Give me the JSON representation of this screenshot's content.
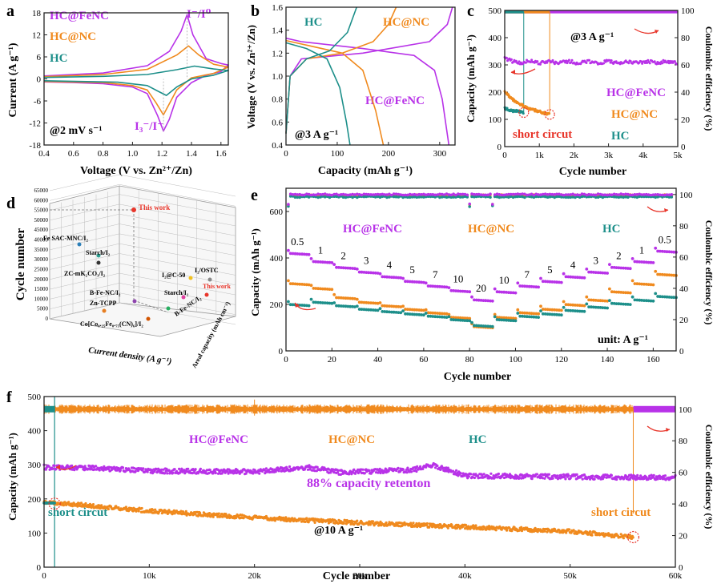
{
  "colors": {
    "fenc": "#b832e8",
    "nc": "#f08a1e",
    "hc": "#1d8f8a",
    "red": "#e8352a",
    "axis": "#222222",
    "grid3d": "#bdbdbd"
  },
  "chart_data": [
    {
      "panel": "a",
      "type": "line",
      "xlabel": "Voltage (V vs. Zn2+/Zn)",
      "ylabel": "Current (A g-1)",
      "xlim": [
        0.4,
        1.65
      ],
      "ylim": [
        -18,
        18
      ],
      "xticks": [
        "0.4",
        "0.6",
        "0.8",
        "1.0",
        "1.2",
        "1.4",
        "1.6"
      ],
      "yticks": [
        "-18",
        "-12",
        "-6",
        "0",
        "6",
        "12",
        "18"
      ],
      "legend": [
        "HC@FeNC",
        "HC@NC",
        "HC"
      ],
      "annotations": {
        "ox": "I-/I0",
        "red": "I3-/I-",
        "condition": "@2 mV s-1"
      },
      "series": [
        {
          "name": "HC@FeNC",
          "points": [
            [
              0.4,
              0.8
            ],
            [
              0.8,
              1.6
            ],
            [
              1.1,
              3.6
            ],
            [
              1.25,
              7.5
            ],
            [
              1.33,
              13
            ],
            [
              1.37,
              17.5
            ],
            [
              1.41,
              12
            ],
            [
              1.5,
              5.5
            ],
            [
              1.6,
              4.2
            ],
            [
              1.65,
              3.8
            ],
            [
              1.6,
              2.0
            ],
            [
              1.5,
              1.0
            ],
            [
              1.4,
              -1.0
            ],
            [
              1.3,
              -5
            ],
            [
              1.25,
              -11
            ],
            [
              1.21,
              -14.2
            ],
            [
              1.17,
              -10
            ],
            [
              1.1,
              -4
            ],
            [
              1.0,
              -2.2
            ],
            [
              0.8,
              -1.3
            ],
            [
              0.6,
              -1.0
            ],
            [
              0.4,
              -0.8
            ]
          ]
        },
        {
          "name": "HC@NC",
          "points": [
            [
              0.4,
              0.6
            ],
            [
              0.8,
              1.2
            ],
            [
              1.1,
              2.6
            ],
            [
              1.3,
              6.5
            ],
            [
              1.38,
              9
            ],
            [
              1.45,
              6.5
            ],
            [
              1.55,
              4
            ],
            [
              1.65,
              3.2
            ],
            [
              1.55,
              1.5
            ],
            [
              1.4,
              0.3
            ],
            [
              1.3,
              -3
            ],
            [
              1.24,
              -7.5
            ],
            [
              1.21,
              -9.8
            ],
            [
              1.16,
              -6.5
            ],
            [
              1.1,
              -3
            ],
            [
              1.0,
              -1.8
            ],
            [
              0.8,
              -1.0
            ],
            [
              0.4,
              -0.7
            ]
          ]
        },
        {
          "name": "HC",
          "points": [
            [
              0.4,
              0.4
            ],
            [
              0.8,
              0.7
            ],
            [
              1.1,
              1.2
            ],
            [
              1.3,
              2.5
            ],
            [
              1.42,
              3.5
            ],
            [
              1.55,
              2.7
            ],
            [
              1.65,
              2.3
            ],
            [
              1.55,
              1.0
            ],
            [
              1.4,
              0
            ],
            [
              1.3,
              -2.2
            ],
            [
              1.23,
              -4.5
            ],
            [
              1.18,
              -3.5
            ],
            [
              1.1,
              -1.8
            ],
            [
              0.9,
              -0.9
            ],
            [
              0.4,
              -0.5
            ]
          ]
        }
      ]
    },
    {
      "panel": "b",
      "type": "line",
      "xlabel": "Capacity (mAh g-1)",
      "ylabel": "Voltage (V vs. Zn2+/Zn)",
      "xlim": [
        0,
        330
      ],
      "ylim": [
        0.4,
        1.6
      ],
      "xticks": [
        "0",
        "100",
        "200",
        "300"
      ],
      "yticks": [
        "0.4",
        "0.6",
        "0.8",
        "1.0",
        "1.2",
        "1.4",
        "1.6"
      ],
      "legend": [
        "HC",
        "HC@NC",
        "HC@FeNC"
      ],
      "annotations": {
        "condition": "@3 A g-1"
      },
      "series": [
        {
          "name": "HC@FeNC charge",
          "points": [
            [
              0,
              0.5
            ],
            [
              8,
              1.0
            ],
            [
              30,
              1.15
            ],
            [
              150,
              1.2
            ],
            [
              280,
              1.3
            ],
            [
              315,
              1.45
            ],
            [
              325,
              1.6
            ]
          ]
        },
        {
          "name": "HC@FeNC discharge",
          "points": [
            [
              0,
              1.33
            ],
            [
              30,
              1.3
            ],
            [
              150,
              1.24
            ],
            [
              250,
              1.18
            ],
            [
              290,
              1.05
            ],
            [
              305,
              0.8
            ],
            [
              318,
              0.4
            ]
          ]
        },
        {
          "name": "HC@NC charge",
          "points": [
            [
              0,
              0.5
            ],
            [
              8,
              1.0
            ],
            [
              40,
              1.15
            ],
            [
              110,
              1.2
            ],
            [
              170,
              1.3
            ],
            [
              200,
              1.45
            ],
            [
              215,
              1.6
            ]
          ]
        },
        {
          "name": "HC@NC discharge",
          "points": [
            [
              0,
              1.31
            ],
            [
              40,
              1.27
            ],
            [
              110,
              1.2
            ],
            [
              150,
              1.05
            ],
            [
              175,
              0.7
            ],
            [
              190,
              0.4
            ]
          ]
        },
        {
          "name": "HC charge",
          "points": [
            [
              0,
              0.5
            ],
            [
              8,
              1.0
            ],
            [
              40,
              1.15
            ],
            [
              85,
              1.22
            ],
            [
              120,
              1.38
            ],
            [
              138,
              1.6
            ]
          ]
        },
        {
          "name": "HC discharge",
          "points": [
            [
              0,
              1.29
            ],
            [
              40,
              1.24
            ],
            [
              80,
              1.15
            ],
            [
              105,
              0.9
            ],
            [
              118,
              0.6
            ],
            [
              125,
              0.4
            ]
          ]
        }
      ]
    },
    {
      "panel": "c",
      "type": "scatter",
      "xlabel": "Cycle number",
      "ylabel": "Capacity (mAh g-1)",
      "y2label": "Coulombic efficiency (%)",
      "xlim": [
        0,
        5000
      ],
      "ylim": [
        0,
        500
      ],
      "y2lim": [
        0,
        100
      ],
      "xticks": [
        "0",
        "1k",
        "2k",
        "3k",
        "4k",
        "5k"
      ],
      "yticks": [
        "0",
        "100",
        "200",
        "300",
        "400",
        "500"
      ],
      "y2ticks": [
        "0",
        "20",
        "40",
        "60",
        "80",
        "100"
      ],
      "legend": [
        "HC@FeNC",
        "HC@NC",
        "HC"
      ],
      "annotations": {
        "condition": "@3 A g-1",
        "short": "short circut"
      },
      "series": [
        {
          "name": "HC@FeNC capacity",
          "summary": "~325 mAh g-1 initially, stable ~310 to 5000 cycles"
        },
        {
          "name": "HC@NC capacity",
          "points": [
            [
              0,
              200
            ],
            [
              300,
              165
            ],
            [
              700,
              140
            ],
            [
              1100,
              125
            ],
            [
              1300,
              118
            ]
          ]
        },
        {
          "name": "HC capacity",
          "points": [
            [
              0,
              140
            ],
            [
              200,
              132
            ],
            [
              450,
              128
            ],
            [
              550,
              125
            ]
          ]
        },
        {
          "name": "CE",
          "summary": "~99% for all samples"
        }
      ]
    },
    {
      "panel": "d",
      "type": "scatter",
      "xlabel": "Current density (A g-1)",
      "ylabel": "Cycle number",
      "zlabel": "Areal capacity (mAh cm-2)",
      "yticks": [
        "0",
        "5000",
        "10000",
        "15000",
        "20000",
        "25000",
        "30000",
        "35000",
        "40000",
        "45000",
        "50000",
        "55000",
        "60000",
        "65000"
      ],
      "labels": [
        "This work",
        "Fe SAC-MNC/I2",
        "Starch/I2",
        "ZC-mK2CO3/I2",
        "I2@C-50",
        "I2/OSTC",
        "This work",
        "Starch/I2",
        "B-Fe-NC/I2",
        "Zn-TCPP",
        "Co[Co0.25Fe0.75(CN)6]/I2",
        "B-Fe-NC/I2"
      ]
    },
    {
      "panel": "e",
      "type": "scatter",
      "xlabel": "Cycle number",
      "ylabel": "Capacity (mAh g-1)",
      "y2label": "Coulombic efficiency (%)",
      "xlim": [
        0,
        170
      ],
      "ylim": [
        0,
        700
      ],
      "y2lim": [
        0,
        100
      ],
      "xticks": [
        "0",
        "20",
        "40",
        "60",
        "80",
        "100",
        "120",
        "140",
        "160"
      ],
      "yticks": [
        "0",
        "200",
        "400",
        "600"
      ],
      "y2ticks": [
        "0",
        "20",
        "40",
        "60",
        "80",
        "100"
      ],
      "legend": [
        "HC@FeNC",
        "HC@NC",
        "HC"
      ],
      "rate_labels": [
        "0.5",
        "1",
        "2",
        "3",
        "4",
        "5",
        "7",
        "10",
        "20",
        "10",
        "7",
        "5",
        "4",
        "3",
        "2",
        "1",
        "0.5"
      ],
      "unit_label": "unit: A g-1",
      "series": [
        {
          "name": "HC@FeNC",
          "steps": [
            420,
            385,
            360,
            340,
            320,
            300,
            280,
            260,
            220,
            255,
            280,
            300,
            320,
            340,
            360,
            385,
            430
          ]
        },
        {
          "name": "HC@NC",
          "steps": [
            290,
            270,
            230,
            210,
            195,
            180,
            165,
            145,
            105,
            145,
            165,
            180,
            200,
            220,
            255,
            290,
            330
          ]
        },
        {
          "name": "HC",
          "steps": [
            200,
            210,
            195,
            180,
            170,
            160,
            150,
            135,
            110,
            135,
            150,
            160,
            175,
            190,
            205,
            220,
            235
          ]
        },
        {
          "name": "CE",
          "summary": "~98-99%"
        }
      ]
    },
    {
      "panel": "f",
      "type": "scatter",
      "xlabel": "Cycle number",
      "ylabel": "Capacity (mAh g-1)",
      "y2label": "Coulombic efficiency (%)",
      "xlim": [
        0,
        60000
      ],
      "ylim": [
        0,
        500
      ],
      "y2lim": [
        0,
        100
      ],
      "xticks": [
        "0",
        "10k",
        "20k",
        "30k",
        "40k",
        "50k",
        "60k"
      ],
      "yticks": [
        "0",
        "100",
        "200",
        "300",
        "400",
        "500"
      ],
      "y2ticks": [
        "0",
        "20",
        "40",
        "60",
        "80",
        "100"
      ],
      "legend": [
        "HC@FeNC",
        "HC@NC",
        "HC"
      ],
      "annotations": {
        "retention": "88% capacity retenton",
        "condition": "@10 A g-1",
        "short_left": "short circut",
        "short_right": "short circut"
      },
      "series": [
        {
          "name": "HC@FeNC",
          "points": [
            [
              0,
              293
            ],
            [
              5000,
              290
            ],
            [
              10000,
              282
            ],
            [
              20000,
              280
            ],
            [
              25000,
              293
            ],
            [
              28000,
              278
            ],
            [
              35000,
              285
            ],
            [
              37000,
              298
            ],
            [
              40000,
              268
            ],
            [
              50000,
              265
            ],
            [
              60000,
              262
            ]
          ]
        },
        {
          "name": "HC@NC",
          "points": [
            [
              0,
              192
            ],
            [
              10000,
              165
            ],
            [
              20000,
              145
            ],
            [
              30000,
              130
            ],
            [
              40000,
              118
            ],
            [
              50000,
              105
            ],
            [
              56000,
              88
            ]
          ]
        },
        {
          "name": "HC",
          "points": [
            [
              0,
              188
            ],
            [
              1000,
              185
            ]
          ]
        },
        {
          "name": "CE",
          "summary": "~100%"
        }
      ]
    }
  ],
  "text": {
    "a": {
      "letter": "a",
      "l1": "HC@FeNC",
      "l2": "HC@NC",
      "l3": "HC",
      "ox": "I⁻/I⁰",
      "red": "I₃⁻/I⁻",
      "cond": "@2 mV s⁻¹",
      "xlabel": "Voltage (V vs. Zn²⁺/Zn)",
      "ylabel": "Current (A g⁻¹)",
      "xt": [
        "0.4",
        "0.6",
        "0.8",
        "1.0",
        "1.2",
        "1.4",
        "1.6"
      ],
      "yt": [
        "-18",
        "-12",
        "-6",
        "0",
        "6",
        "12",
        "18"
      ]
    },
    "b": {
      "letter": "b",
      "l1": "HC",
      "l2": "HC@NC",
      "l3": "HC@FeNC",
      "cond": "@3 A g⁻¹",
      "xlabel": "Capacity (mAh g⁻¹)",
      "ylabel": "Voltage (V vs. Zn²⁺/Zn)",
      "xt": [
        "0",
        "100",
        "200",
        "300"
      ],
      "yt": [
        "0.4",
        "0.6",
        "0.8",
        "1.0",
        "1.2",
        "1.4",
        "1.6"
      ]
    },
    "c": {
      "letter": "c",
      "l1": "HC@FeNC",
      "l2": "HC@NC",
      "l3": "HC",
      "cond": "@3 A g⁻¹",
      "short": "short circut",
      "xlabel": "Cycle number",
      "ylabel": "Capacity (mAh g⁻¹)",
      "y2label": "Coulombic efficiency (%)",
      "xt": [
        "0",
        "1k",
        "2k",
        "3k",
        "4k",
        "5k"
      ],
      "yt": [
        "0",
        "100",
        "200",
        "300",
        "400",
        "500"
      ],
      "y2t": [
        "0",
        "20",
        "40",
        "60",
        "80",
        "100"
      ]
    },
    "d": {
      "letter": "d",
      "ylabel": "Cycle number",
      "xlabel": "Current density (A g⁻¹)",
      "zlabel": "Areal capacity (mAh cm⁻²)",
      "yt": [
        "0",
        "5000",
        "10000",
        "15000",
        "20000",
        "25000",
        "30000",
        "35000",
        "40000",
        "45000",
        "50000",
        "55000",
        "60000",
        "65000"
      ],
      "lab1": "This work",
      "lab2": "Fe SAC-MNC/I₂",
      "lab3": "Starch/I₂",
      "lab4": "ZC-mK₂CO₃/I₂",
      "lab5": "I₂@C-50",
      "lab6": "I₂/OSTC",
      "lab7": "This work",
      "lab8": "Starch/I₂",
      "lab9": "B-Fe-NC/I₂",
      "lab10": "Zn-TCPP",
      "lab11": "Co[Co₀.₂₅Fe₀.₇₅(CN)₆]/I₂",
      "lab12": "B-Fe-NC/I₂"
    },
    "e": {
      "letter": "e",
      "l1": "HC@FeNC",
      "l2": "HC@NC",
      "l3": "HC",
      "unit": "unit: A g⁻¹",
      "xlabel": "Cycle number",
      "ylabel": "Capacity (mAh g⁻¹)",
      "y2label": "Coulombic efficiency (%)",
      "xt": [
        "0",
        "20",
        "40",
        "60",
        "80",
        "100",
        "120",
        "140",
        "160"
      ],
      "yt": [
        "0",
        "200",
        "400",
        "600"
      ],
      "y2t": [
        "0",
        "20",
        "40",
        "60",
        "80",
        "100"
      ],
      "rates": [
        "0.5",
        "1",
        "2",
        "3",
        "4",
        "5",
        "7",
        "10",
        "20",
        "10",
        "7",
        "5",
        "4",
        "3",
        "2",
        "1",
        "0.5"
      ]
    },
    "f": {
      "letter": "f",
      "l1": "HC@FeNC",
      "l2": "HC@NC",
      "l3": "HC",
      "retention": "88% capacity retenton",
      "cond": "@10 A g⁻¹",
      "short1": "short circut",
      "short2": "short circut",
      "xlabel": "Cycle number",
      "ylabel": "Capacity (mAh g⁻¹)",
      "y2label": "Coulombic efficiency (%)",
      "xt": [
        "0",
        "10k",
        "20k",
        "30k",
        "40k",
        "50k",
        "60k"
      ],
      "yt": [
        "0",
        "100",
        "200",
        "300",
        "400",
        "500"
      ],
      "y2t": [
        "0",
        "20",
        "40",
        "60",
        "80",
        "100"
      ]
    }
  }
}
